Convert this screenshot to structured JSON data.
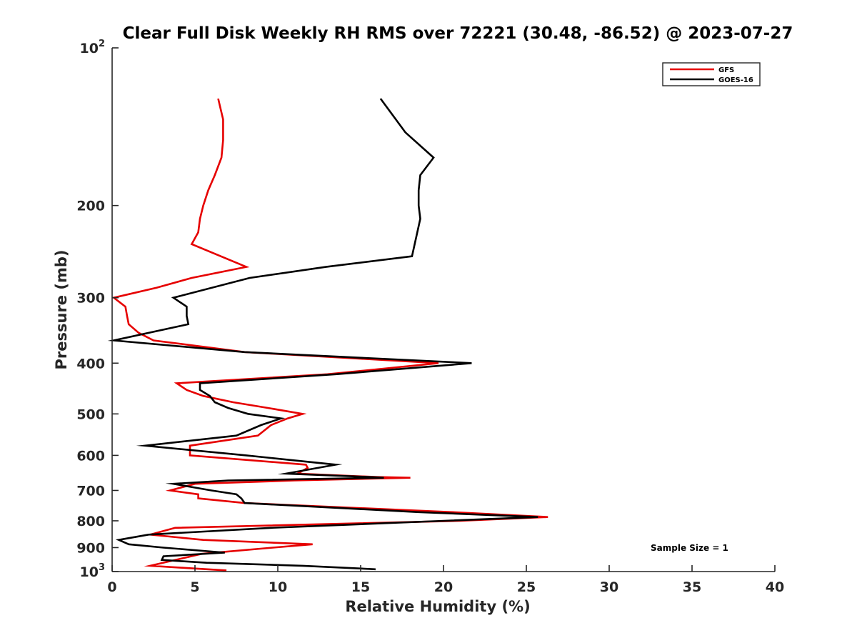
{
  "chart_data": {
    "type": "line",
    "title": "Clear Full Disk Weekly RH RMS over 72221 (30.48, -86.52) @ 2023-07-27",
    "xlabel": "Relative Humidity (%)",
    "ylabel": "Pressure (mb)",
    "xlim": [
      0,
      40
    ],
    "ylim": [
      100,
      1000
    ],
    "y_scale": "log",
    "y_reversed": true,
    "x_ticks": [
      0,
      5,
      10,
      15,
      20,
      25,
      30,
      35,
      40
    ],
    "y_ticks": [
      {
        "value": 100,
        "base": "10",
        "exp": "2"
      },
      {
        "value": 200,
        "label": "200"
      },
      {
        "value": 300,
        "label": "300"
      },
      {
        "value": 400,
        "label": "400"
      },
      {
        "value": 500,
        "label": "500"
      },
      {
        "value": 600,
        "label": "600"
      },
      {
        "value": 700,
        "label": "700"
      },
      {
        "value": 800,
        "label": "800"
      },
      {
        "value": 900,
        "label": "900"
      },
      {
        "value": 1000,
        "base": "10",
        "exp": "3"
      }
    ],
    "grid": false,
    "legend_position": "top-right",
    "annotation": "Sample Size = 1",
    "series": [
      {
        "name": "GFS",
        "color": "#e60000",
        "points": [
          [
            6.4,
            125
          ],
          [
            6.7,
            137
          ],
          [
            6.7,
            150
          ],
          [
            6.6,
            162
          ],
          [
            6.2,
            175
          ],
          [
            5.8,
            187
          ],
          [
            5.5,
            200
          ],
          [
            5.3,
            212
          ],
          [
            5.2,
            225
          ],
          [
            4.8,
            237
          ],
          [
            8.1,
            262
          ],
          [
            4.8,
            275
          ],
          [
            2.7,
            287
          ],
          [
            0.1,
            300
          ],
          [
            0.8,
            312
          ],
          [
            0.9,
            325
          ],
          [
            1.0,
            337
          ],
          [
            1.6,
            350
          ],
          [
            2.5,
            362
          ],
          [
            8.0,
            381
          ],
          [
            19.7,
            400
          ],
          [
            13.0,
            420
          ],
          [
            3.9,
            437
          ],
          [
            4.5,
            450
          ],
          [
            5.5,
            462
          ],
          [
            7.3,
            475
          ],
          [
            9.4,
            487
          ],
          [
            11.5,
            500
          ],
          [
            10.6,
            510
          ],
          [
            9.6,
            525
          ],
          [
            8.8,
            550
          ],
          [
            4.7,
            575
          ],
          [
            4.7,
            600
          ],
          [
            11.7,
            625
          ],
          [
            11.8,
            634
          ],
          [
            11.2,
            650
          ],
          [
            16.0,
            660
          ],
          [
            18.0,
            662
          ],
          [
            11.0,
            670
          ],
          [
            5.0,
            680
          ],
          [
            3.5,
            700
          ],
          [
            5.2,
            712
          ],
          [
            5.2,
            725
          ],
          [
            8.0,
            740
          ],
          [
            20.5,
            770
          ],
          [
            26.3,
            787
          ],
          [
            21.0,
            800
          ],
          [
            3.8,
            825
          ],
          [
            2.3,
            850
          ],
          [
            5.5,
            870
          ],
          [
            12.1,
            887
          ],
          [
            9.7,
            900
          ],
          [
            5.4,
            925
          ],
          [
            2.3,
            975
          ],
          [
            4.6,
            985
          ],
          [
            6.9,
            995
          ]
        ]
      },
      {
        "name": "GOES-16",
        "color": "#000000",
        "points": [
          [
            16.2,
            125
          ],
          [
            17.7,
            145
          ],
          [
            19.4,
            162
          ],
          [
            18.6,
            175
          ],
          [
            18.5,
            187
          ],
          [
            18.5,
            200
          ],
          [
            18.6,
            212
          ],
          [
            18.1,
            250
          ],
          [
            12.9,
            262
          ],
          [
            8.3,
            275
          ],
          [
            3.7,
            300
          ],
          [
            4.5,
            312
          ],
          [
            4.5,
            325
          ],
          [
            4.6,
            337
          ],
          [
            0.1,
            362
          ],
          [
            8.0,
            381
          ],
          [
            21.7,
            400
          ],
          [
            13.5,
            420
          ],
          [
            5.3,
            437
          ],
          [
            5.3,
            450
          ],
          [
            5.9,
            462
          ],
          [
            6.2,
            475
          ],
          [
            7.0,
            487
          ],
          [
            8.2,
            500
          ],
          [
            10.2,
            510
          ],
          [
            9.0,
            525
          ],
          [
            7.5,
            550
          ],
          [
            2.0,
            575
          ],
          [
            8.1,
            600
          ],
          [
            13.5,
            625
          ],
          [
            10.5,
            650
          ],
          [
            15.6,
            660
          ],
          [
            16.4,
            662
          ],
          [
            7.0,
            670
          ],
          [
            3.7,
            680
          ],
          [
            6.0,
            700
          ],
          [
            7.5,
            712
          ],
          [
            7.8,
            725
          ],
          [
            8.0,
            740
          ],
          [
            18.5,
            770
          ],
          [
            25.7,
            787
          ],
          [
            20.0,
            800
          ],
          [
            9.6,
            825
          ],
          [
            2.2,
            850
          ],
          [
            0.4,
            870
          ],
          [
            1.0,
            887
          ],
          [
            3.1,
            900
          ],
          [
            6.8,
            920
          ],
          [
            3.1,
            935
          ],
          [
            3.0,
            950
          ],
          [
            5.7,
            962
          ],
          [
            11.5,
            975
          ],
          [
            15.9,
            990
          ]
        ]
      }
    ]
  }
}
